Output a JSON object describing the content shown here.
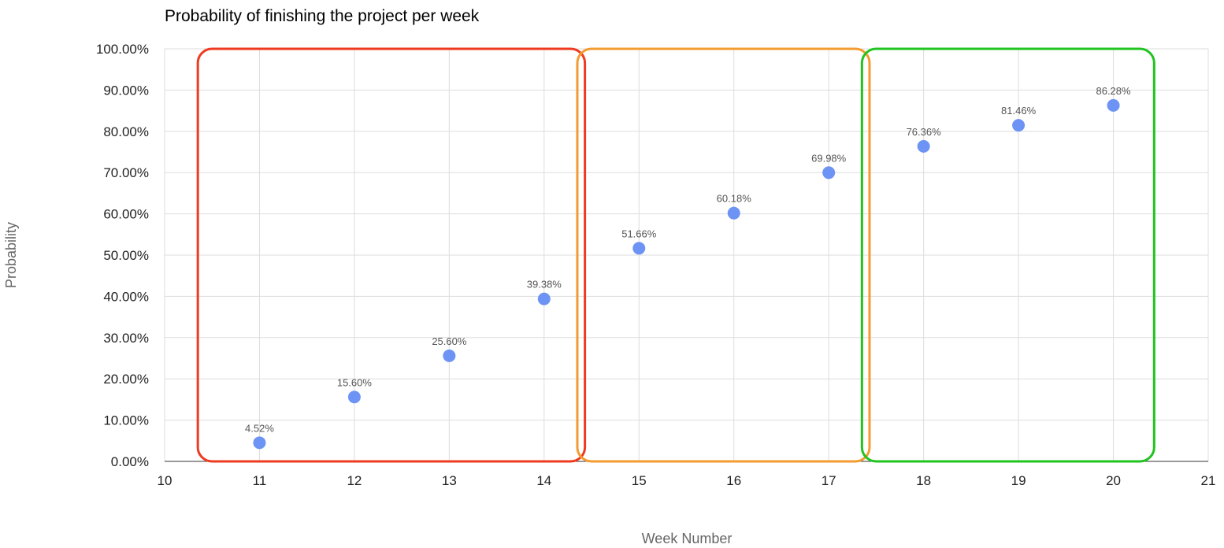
{
  "chart_data": {
    "type": "scatter",
    "title": "Probability of finishing the project per week",
    "xlabel": "Week Number",
    "ylabel": "Probability",
    "xlim": [
      10,
      21
    ],
    "ylim": [
      0,
      100
    ],
    "x_ticks": [
      10,
      11,
      12,
      13,
      14,
      15,
      16,
      17,
      18,
      19,
      20,
      21
    ],
    "y_ticks": [
      0,
      10,
      20,
      30,
      40,
      50,
      60,
      70,
      80,
      90,
      100
    ],
    "y_tick_labels": [
      "0.00%",
      "10.00%",
      "20.00%",
      "30.00%",
      "40.00%",
      "50.00%",
      "60.00%",
      "70.00%",
      "80.00%",
      "90.00%",
      "100.00%"
    ],
    "grid": true,
    "series": [
      {
        "color": "#6d93f5",
        "points": [
          {
            "x": 11,
            "y": 4.52,
            "label": "4.52%"
          },
          {
            "x": 12,
            "y": 15.6,
            "label": "15.60%"
          },
          {
            "x": 13,
            "y": 25.6,
            "label": "25.60%"
          },
          {
            "x": 14,
            "y": 39.38,
            "label": "39.38%"
          },
          {
            "x": 15,
            "y": 51.66,
            "label": "51.66%"
          },
          {
            "x": 16,
            "y": 60.18,
            "label": "60.18%"
          },
          {
            "x": 17,
            "y": 69.98,
            "label": "69.98%"
          },
          {
            "x": 18,
            "y": 76.36,
            "label": "76.36%"
          },
          {
            "x": 19,
            "y": 81.46,
            "label": "81.46%"
          },
          {
            "x": 20,
            "y": 86.28,
            "label": "86.28%"
          }
        ]
      }
    ],
    "highlight_groups": [
      {
        "color": "#ee3a1f",
        "x_from": 11,
        "x_to": 14
      },
      {
        "color": "#f39b30",
        "x_from": 15,
        "x_to": 17
      },
      {
        "color": "#21c41f",
        "x_from": 18,
        "x_to": 20
      }
    ]
  }
}
